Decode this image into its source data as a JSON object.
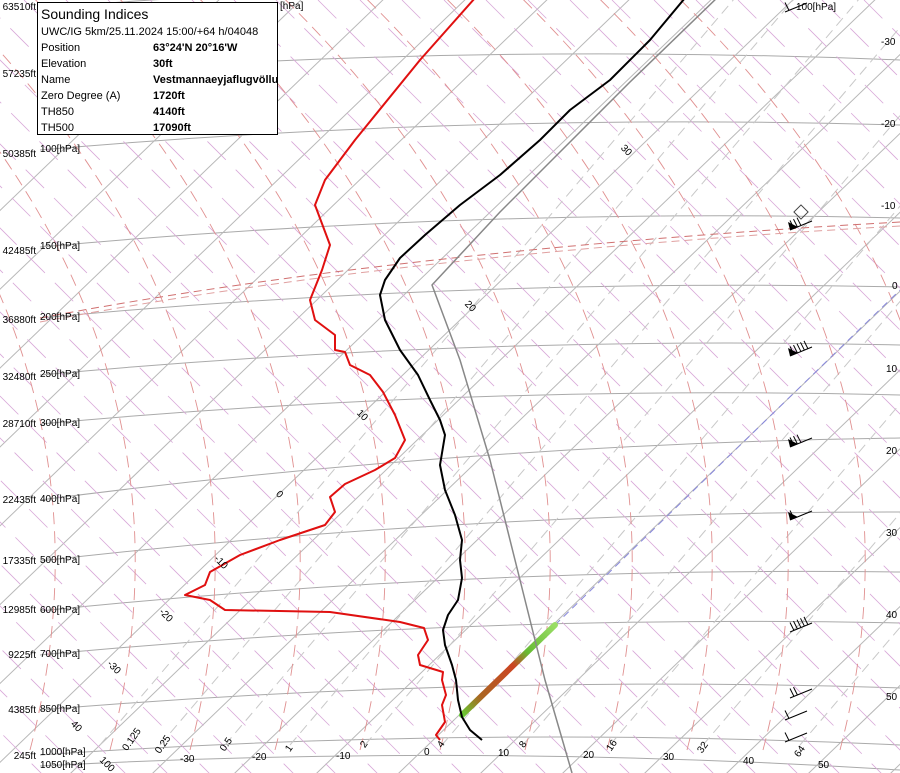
{
  "info_box": {
    "title": "Sounding Indices",
    "model_line": "UWC/IG 5km/25.11.2024 15:00/+64 h/04048",
    "rows": [
      {
        "key": "Position",
        "value": "63°24'N 20°16'W"
      },
      {
        "key": "Elevation",
        "value": "30ft"
      },
      {
        "key": "Name",
        "value": "Vestmannaeyjaflugvöllur"
      },
      {
        "key": "Zero Degree (A)",
        "value": "1720ft"
      },
      {
        "key": "TH850",
        "value": "4140ft"
      },
      {
        "key": "TH500",
        "value": "17090ft"
      }
    ]
  },
  "altitude_labels": [
    "63510ft",
    "57235ft",
    "50385ft",
    "42485ft",
    "36880ft",
    "32480ft",
    "28710ft",
    "22435ft",
    "17335ft",
    "12985ft",
    "9225ft",
    "4385ft",
    "245ft"
  ],
  "pressure_labels": [
    "100[hPa]",
    "150[hPa]",
    "200[hPa]",
    "250[hPa]",
    "300[hPa]",
    "400[hPa]",
    "500[hPa]",
    "600[hPa]",
    "700[hPa]",
    "850[hPa]",
    "1000[hPa]",
    "1050[hPa]"
  ],
  "top_labels": {
    "hidden_hpa": "[hPa]",
    "wind_top": "100[hPa]"
  },
  "isotherm_bottom_labels": [
    "-30",
    "-20",
    "-10",
    "0",
    "10",
    "20",
    "30",
    "40",
    "50"
  ],
  "isotherm_right_labels": [
    "-30",
    "-20",
    "-10",
    "0",
    "10",
    "20",
    "30",
    "40",
    "50"
  ],
  "mixing_ratio_labels": [
    "0.125",
    "0.25",
    "0.5",
    "1",
    "2",
    "4",
    "8",
    "16",
    "32",
    "64"
  ],
  "theta_labels": [
    "30",
    "20",
    "10",
    "0",
    "-10",
    "-20",
    "-30",
    "40",
    "100"
  ],
  "colors": {
    "temperature": "#e01010",
    "dewpoint_or_virtual": "#000000",
    "parcel": "#888888",
    "isotherm": "#b8b8b8",
    "dry_adiabat": "#d8a8d8",
    "moist_adiabat": "#e09090",
    "mixing_ratio": "#c8c8c8",
    "lift_line": "#8888dd"
  }
}
